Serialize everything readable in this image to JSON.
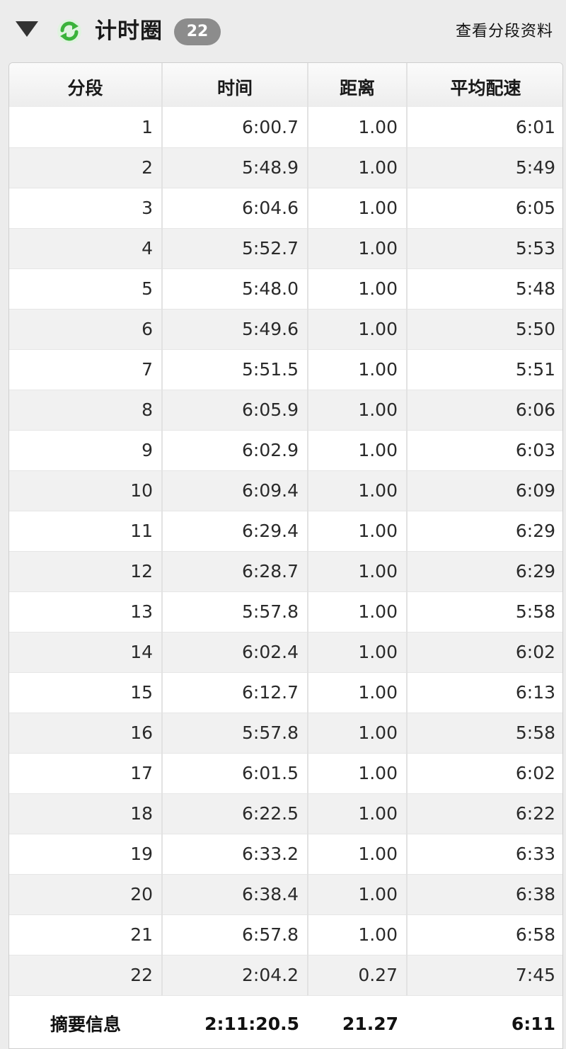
{
  "header": {
    "title": "计时圈",
    "count": "22",
    "view_link": "查看分段资料",
    "refresh_icon_color": "#3ab33a"
  },
  "table": {
    "columns": [
      "分段",
      "时间",
      "距离",
      "平均配速"
    ],
    "rows": [
      [
        "1",
        "6:00.7",
        "1.00",
        "6:01"
      ],
      [
        "2",
        "5:48.9",
        "1.00",
        "5:49"
      ],
      [
        "3",
        "6:04.6",
        "1.00",
        "6:05"
      ],
      [
        "4",
        "5:52.7",
        "1.00",
        "5:53"
      ],
      [
        "5",
        "5:48.0",
        "1.00",
        "5:48"
      ],
      [
        "6",
        "5:49.6",
        "1.00",
        "5:50"
      ],
      [
        "7",
        "5:51.5",
        "1.00",
        "5:51"
      ],
      [
        "8",
        "6:05.9",
        "1.00",
        "6:06"
      ],
      [
        "9",
        "6:02.9",
        "1.00",
        "6:03"
      ],
      [
        "10",
        "6:09.4",
        "1.00",
        "6:09"
      ],
      [
        "11",
        "6:29.4",
        "1.00",
        "6:29"
      ],
      [
        "12",
        "6:28.7",
        "1.00",
        "6:29"
      ],
      [
        "13",
        "5:57.8",
        "1.00",
        "5:58"
      ],
      [
        "14",
        "6:02.4",
        "1.00",
        "6:02"
      ],
      [
        "15",
        "6:12.7",
        "1.00",
        "6:13"
      ],
      [
        "16",
        "5:57.8",
        "1.00",
        "5:58"
      ],
      [
        "17",
        "6:01.5",
        "1.00",
        "6:02"
      ],
      [
        "18",
        "6:22.5",
        "1.00",
        "6:22"
      ],
      [
        "19",
        "6:33.2",
        "1.00",
        "6:33"
      ],
      [
        "20",
        "6:38.4",
        "1.00",
        "6:38"
      ],
      [
        "21",
        "6:57.8",
        "1.00",
        "6:58"
      ],
      [
        "22",
        "2:04.2",
        "0.27",
        "7:45"
      ]
    ],
    "summary": {
      "label": "摘要信息",
      "time": "2:11:20.5",
      "distance": "21.27",
      "pace": "6:11"
    }
  }
}
